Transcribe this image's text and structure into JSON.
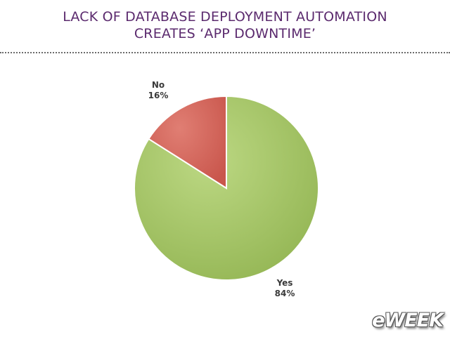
{
  "title_lines": [
    "LACK OF DATABASE DEPLOYMENT AUTOMATION",
    "CREATES ‘APP DOWNTIME’"
  ],
  "logo_text": "eWEEK",
  "chart_data": {
    "type": "pie",
    "title": "LACK OF DATABASE DEPLOYMENT AUTOMATION CREATES ‘APP DOWNTIME’",
    "categories": [
      "Yes",
      "No"
    ],
    "values": [
      84,
      16
    ],
    "value_labels": [
      "84%",
      "16%"
    ],
    "colors": [
      "#a8c96a",
      "#d9685e"
    ],
    "start_angle_deg": 0,
    "direction": "clockwise",
    "legend": "none"
  }
}
